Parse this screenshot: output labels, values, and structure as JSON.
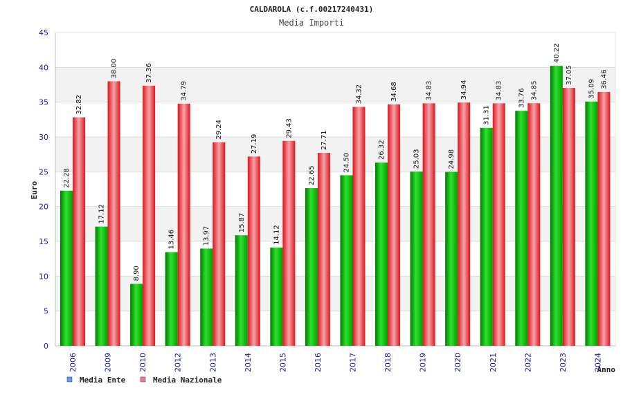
{
  "chart_data": {
    "type": "bar",
    "title": "CALDAROLA (c.f.00217240431)",
    "subtitle": "Media Importi",
    "xlabel": "Anno",
    "ylabel": "Euro",
    "ylim": [
      0,
      45
    ],
    "yticks": [
      0,
      5,
      10,
      15,
      20,
      25,
      30,
      35,
      40,
      45
    ],
    "grid": true,
    "legend_position": "bottom-left",
    "categories": [
      "2006",
      "2009",
      "2010",
      "2012",
      "2013",
      "2014",
      "2015",
      "2016",
      "2017",
      "2018",
      "2019",
      "2020",
      "2021",
      "2022",
      "2023",
      "2024"
    ],
    "series": [
      {
        "name": "Media Ente",
        "color": "#16b316",
        "legend_color": "#5aa0e8",
        "values": [
          22.28,
          17.12,
          8.9,
          13.46,
          13.97,
          15.87,
          14.12,
          22.65,
          24.5,
          26.32,
          25.03,
          24.98,
          31.31,
          33.76,
          40.22,
          35.09
        ],
        "labels": [
          "22.28",
          "17.12",
          "8.90",
          "13.46",
          "13.97",
          "15.87",
          "14.12",
          "22.65",
          "24.50",
          "26.32",
          "25.03",
          "24.98",
          "31.31",
          "33.76",
          "40.22",
          "35.09"
        ]
      },
      {
        "name": "Media Nazionale",
        "color": "#e8202a",
        "legend_color": "#e87aa8",
        "values": [
          32.82,
          38.0,
          37.36,
          34.79,
          29.24,
          27.19,
          29.43,
          27.71,
          34.32,
          34.68,
          34.83,
          34.94,
          34.83,
          34.85,
          37.05,
          36.46
        ],
        "labels": [
          "32.82",
          "38.00",
          "37.36",
          "34.79",
          "29.24",
          "27.19",
          "29.43",
          "27.71",
          "34.32",
          "34.68",
          "34.83",
          "34.94",
          "34.83",
          "34.85",
          "37.05",
          "36.46"
        ]
      }
    ]
  }
}
